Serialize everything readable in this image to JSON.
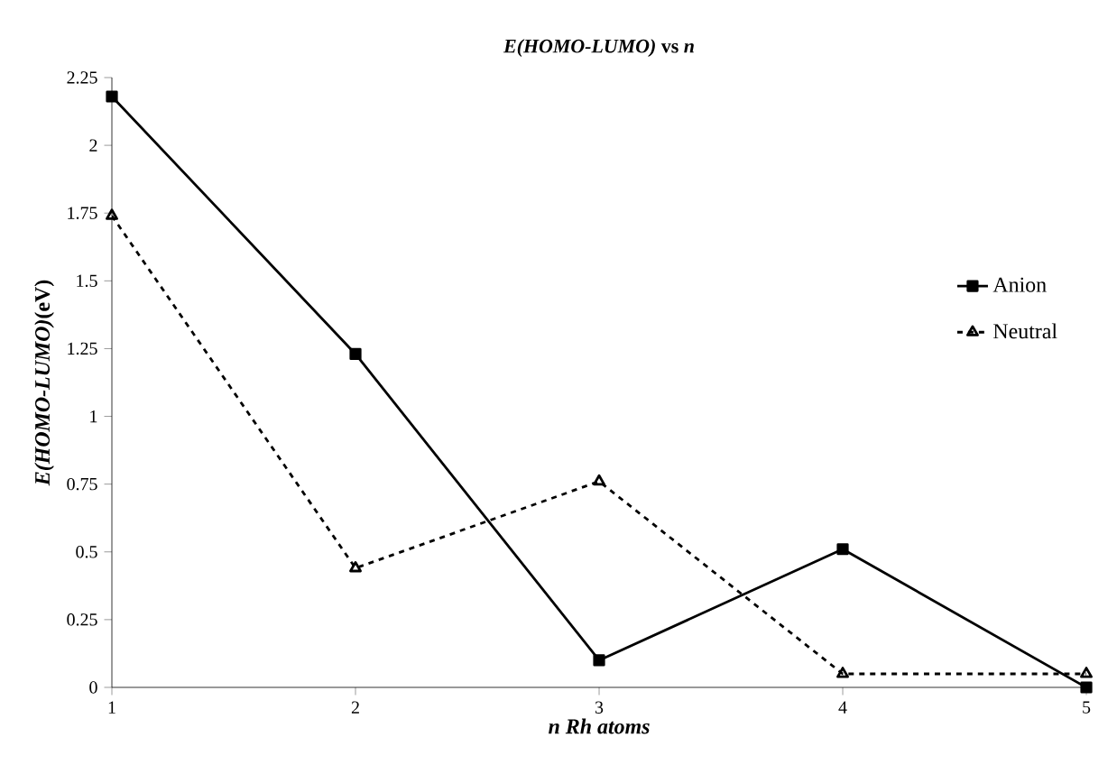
{
  "chart_data": {
    "type": "line",
    "title": "*E(HOMO-LUMO)* vs *n*",
    "xlabel": "n   Rh atoms",
    "ylabel": "*E(HOMO-LUMO)*(eV)",
    "x": [
      1,
      2,
      3,
      4,
      5
    ],
    "xlim": [
      1,
      5
    ],
    "xticks": [
      1,
      2,
      3,
      4,
      5
    ],
    "ylim": [
      0,
      2.25
    ],
    "yticks": [
      0,
      0.25,
      0.5,
      0.75,
      1,
      1.25,
      1.5,
      1.75,
      2,
      2.25
    ],
    "legend": "right",
    "series": [
      {
        "name": "Anion",
        "color": "#000000",
        "values": [
          2.18,
          1.23,
          0.1,
          0.51,
          0
        ],
        "marker": "square",
        "line_style": "solid"
      },
      {
        "name": "Neutral",
        "color": "#000000",
        "values": [
          1.74,
          0.44,
          0.76,
          0.05,
          0.05
        ],
        "marker": "triangle",
        "line_style": "dashed"
      }
    ]
  }
}
